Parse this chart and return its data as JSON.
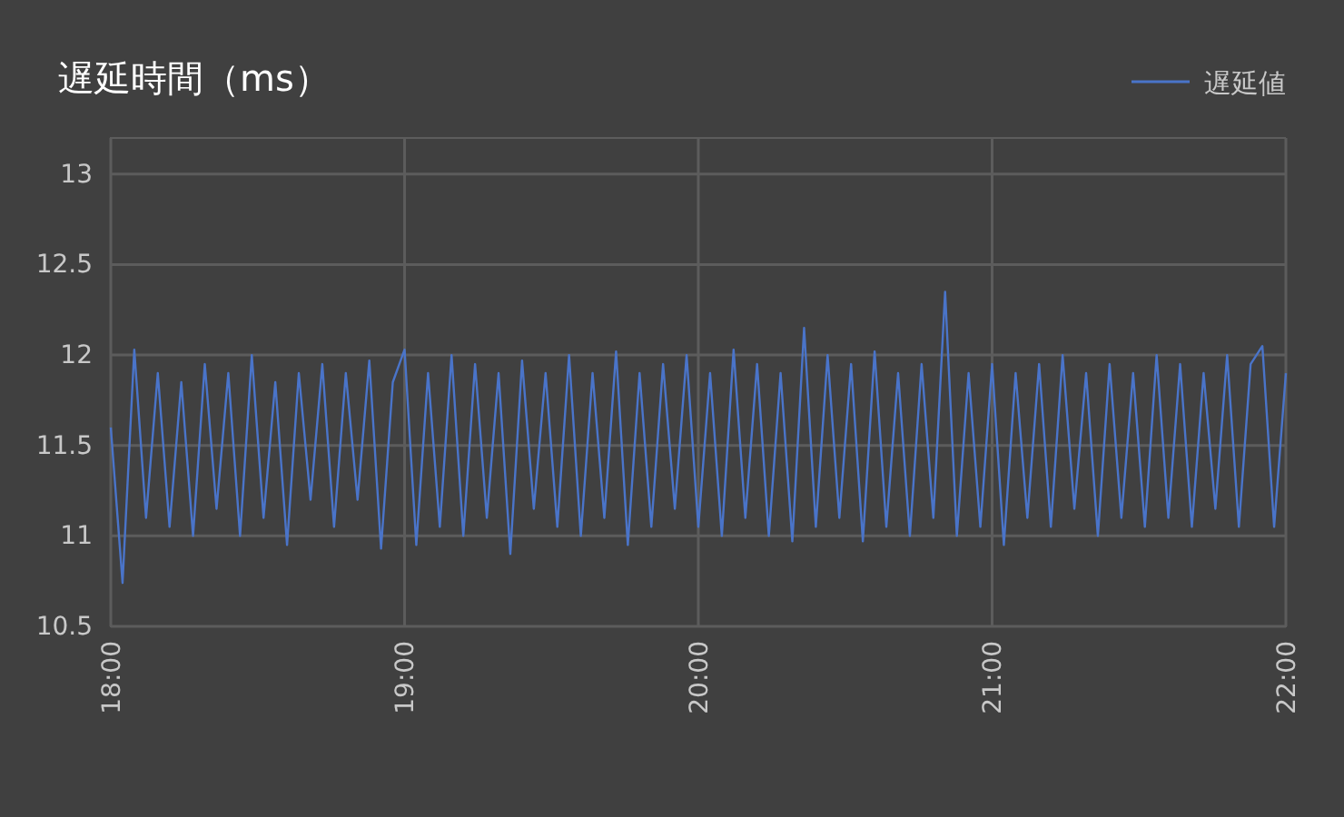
{
  "chart_data": {
    "type": "line",
    "title": "遅延時間（ms）",
    "x": [
      18,
      18.04,
      18.08,
      18.12,
      18.16,
      18.2,
      18.24,
      18.28,
      18.32,
      18.36,
      18.4,
      18.44,
      18.48,
      18.52,
      18.56,
      18.6,
      18.64,
      18.68,
      18.72,
      18.76,
      18.8,
      18.84,
      18.88,
      18.92,
      18.96,
      19,
      19.04,
      19.08,
      19.12,
      19.16,
      19.2,
      19.24,
      19.28,
      19.32,
      19.36,
      19.4,
      19.44,
      19.48,
      19.52,
      19.56,
      19.6,
      19.64,
      19.68,
      19.72,
      19.76,
      19.8,
      19.84,
      19.88,
      19.92,
      19.96,
      20,
      20.04,
      20.08,
      20.12,
      20.16,
      20.2,
      20.24,
      20.28,
      20.32,
      20.36,
      20.4,
      20.44,
      20.48,
      20.52,
      20.56,
      20.6,
      20.64,
      20.68,
      20.72,
      20.76,
      20.8,
      20.84,
      20.88,
      20.92,
      20.96,
      21,
      21.04,
      21.08,
      21.12,
      21.16,
      21.2,
      21.24,
      21.28,
      21.32,
      21.36,
      21.4,
      21.44,
      21.48,
      21.52,
      21.56,
      21.6,
      21.64,
      21.68,
      21.72,
      21.76,
      21.8,
      21.84,
      21.88,
      21.92,
      21.96,
      22
    ],
    "series": [
      {
        "name": "遅延値",
        "color": "#4a74c9",
        "values": [
          11.6,
          10.74,
          12.03,
          11.1,
          11.9,
          11.05,
          11.85,
          11.0,
          11.95,
          11.15,
          11.9,
          11.0,
          12.0,
          11.1,
          11.85,
          10.95,
          11.9,
          11.2,
          11.95,
          11.05,
          11.9,
          11.2,
          11.97,
          10.93,
          11.85,
          12.03,
          10.95,
          11.9,
          11.05,
          12.0,
          11.0,
          11.95,
          11.1,
          11.9,
          10.9,
          11.97,
          11.15,
          11.9,
          11.05,
          12.0,
          11.0,
          11.9,
          11.1,
          12.02,
          10.95,
          11.9,
          11.05,
          11.95,
          11.15,
          12.0,
          11.05,
          11.9,
          11.0,
          12.03,
          11.1,
          11.95,
          11.0,
          11.9,
          10.97,
          12.15,
          11.05,
          12.0,
          11.1,
          11.95,
          10.97,
          12.02,
          11.05,
          11.9,
          11.0,
          11.95,
          11.1,
          12.35,
          11.0,
          11.9,
          11.05,
          11.95,
          10.95,
          11.9,
          11.1,
          11.95,
          11.05,
          12.0,
          11.15,
          11.9,
          11.0,
          11.95,
          11.1,
          11.9,
          11.05,
          12.0,
          11.1,
          11.95,
          11.05,
          11.9,
          11.15,
          12.0,
          11.05,
          11.95,
          12.05,
          11.05,
          11.9
        ]
      }
    ],
    "xlim": [
      18,
      22
    ],
    "xticks": [
      {
        "value": 18,
        "label": "18:00"
      },
      {
        "value": 19,
        "label": "19:00"
      },
      {
        "value": 20,
        "label": "20:00"
      },
      {
        "value": 21,
        "label": "21:00"
      },
      {
        "value": 22,
        "label": "22:00"
      }
    ],
    "ylim": [
      10.5,
      13.2
    ],
    "yticks": [
      10.5,
      11,
      11.5,
      12,
      12.5,
      13
    ],
    "grid": true,
    "legend": "top right",
    "marker": "none",
    "line_style": "solid"
  }
}
